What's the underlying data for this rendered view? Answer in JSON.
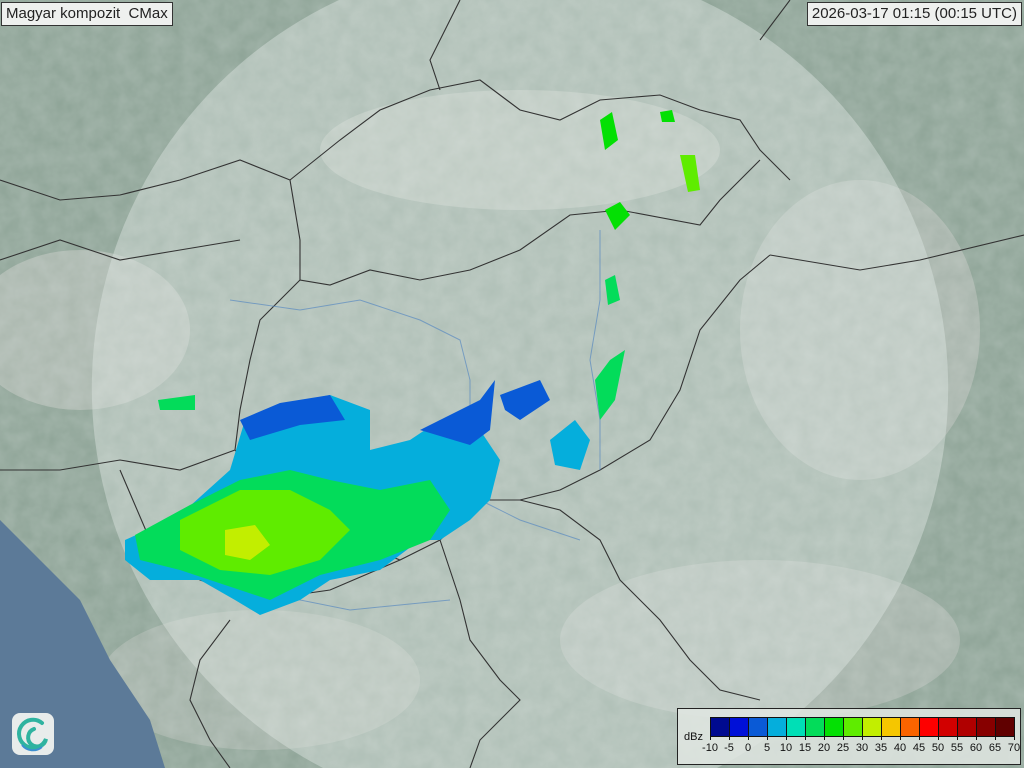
{
  "title": "Magyar kompozit  CMax",
  "timestamp": "2026-03-17 01:15 (00:15 UTC)",
  "logo": {
    "icon": "swirl-logo-icon"
  },
  "legend": {
    "unit": "dBz",
    "ticks": [
      "-10",
      "-5",
      "0",
      "5",
      "10",
      "15",
      "20",
      "25",
      "30",
      "35",
      "40",
      "45",
      "50",
      "55",
      "60",
      "65",
      "70"
    ],
    "colors": [
      "#000a8f",
      "#0010d8",
      "#0a5ad6",
      "#05aedc",
      "#00dfb6",
      "#03dc5a",
      "#04e004",
      "#5fec00",
      "#c2ee00",
      "#f5c600",
      "#fa6400",
      "#fe0000",
      "#d20000",
      "#b00000",
      "#870000",
      "#600000"
    ]
  },
  "map": {
    "land_color": "#8da396",
    "radar_coverage_color": "#c9d6cf",
    "sea_color": "#5c7a98"
  }
}
